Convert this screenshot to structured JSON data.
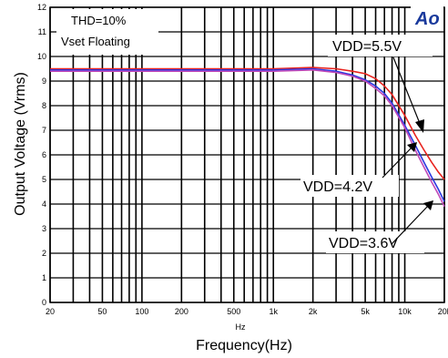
{
  "chart_data": {
    "type": "line",
    "xlabel": "Frequency(Hz)",
    "xunit_small": "Hz",
    "ylabel": "Output Voltage (Vrms)",
    "xscale": "log",
    "xlim": [
      20,
      20000
    ],
    "ylim": [
      0,
      12
    ],
    "grid": true,
    "x_tick_labels": [
      {
        "value": 20,
        "label": "20"
      },
      {
        "value": 50,
        "label": "50"
      },
      {
        "value": 100,
        "label": "100"
      },
      {
        "value": 200,
        "label": "200"
      },
      {
        "value": 500,
        "label": "500"
      },
      {
        "value": 1000,
        "label": "1k"
      },
      {
        "value": 2000,
        "label": "2k"
      },
      {
        "value": 5000,
        "label": "5k"
      },
      {
        "value": 10000,
        "label": "10k"
      },
      {
        "value": 20000,
        "label": "20k"
      }
    ],
    "y_tick_labels": [
      "0",
      "1",
      "2",
      "3",
      "4",
      "5",
      "6",
      "7",
      "8",
      "9",
      "10",
      "11",
      "12"
    ],
    "annotations": [
      "THD=10%",
      "Vset Floating"
    ],
    "logo_text": "Ao",
    "series": [
      {
        "name": "VDD=5.5V",
        "color": "#e8231e",
        "x": [
          20,
          100,
          500,
          1000,
          2000,
          3000,
          4000,
          5000,
          6000,
          7000,
          8000,
          10000,
          12000,
          14000,
          16000,
          18000,
          20000
        ],
        "y": [
          9.5,
          9.5,
          9.5,
          9.5,
          9.55,
          9.5,
          9.4,
          9.3,
          9.1,
          8.8,
          8.45,
          7.6,
          6.8,
          6.2,
          5.7,
          5.3,
          5.0
        ]
      },
      {
        "name": "VDD=4.2V",
        "color": "#2b37e0",
        "x": [
          20,
          100,
          500,
          1000,
          2000,
          3000,
          4000,
          5000,
          6000,
          7000,
          8000,
          10000,
          12000,
          14000,
          16000,
          18000,
          20000
        ],
        "y": [
          9.45,
          9.45,
          9.45,
          9.45,
          9.5,
          9.4,
          9.25,
          9.05,
          8.8,
          8.5,
          8.1,
          7.2,
          6.4,
          5.7,
          5.1,
          4.6,
          4.1
        ]
      },
      {
        "name": "VDD=3.6V",
        "color": "#c04ab8",
        "x": [
          20,
          100,
          500,
          1000,
          2000,
          3000,
          4000,
          5000,
          6000,
          7000,
          8000,
          10000,
          12000,
          14000,
          16000,
          18000,
          20000
        ],
        "y": [
          9.4,
          9.4,
          9.4,
          9.4,
          9.45,
          9.35,
          9.2,
          9.0,
          8.7,
          8.4,
          8.0,
          7.1,
          6.2,
          5.5,
          4.9,
          4.4,
          3.9
        ]
      }
    ]
  }
}
